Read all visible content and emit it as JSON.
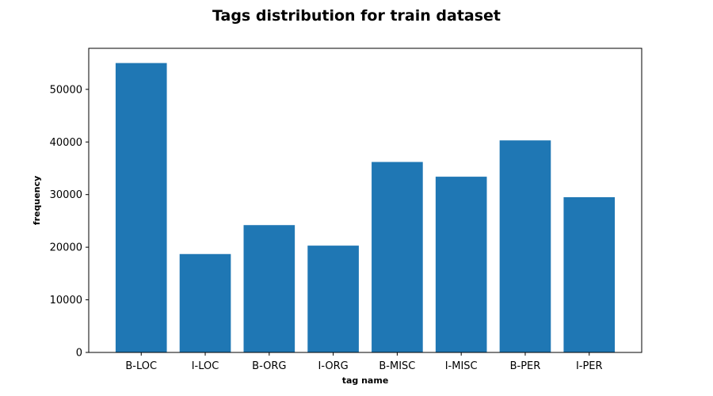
{
  "chart_data": {
    "type": "bar",
    "title": "Tags distribution for train dataset",
    "xlabel": "tag name",
    "ylabel": "frequency",
    "categories": [
      "B-LOC",
      "I-LOC",
      "B-ORG",
      "I-ORG",
      "B-MISC",
      "I-MISC",
      "B-PER",
      "I-PER"
    ],
    "values": [
      55000,
      18700,
      24200,
      20300,
      36200,
      33400,
      40300,
      29500
    ],
    "yticks": [
      0,
      10000,
      20000,
      30000,
      40000,
      50000
    ],
    "ylim": [
      0,
      57800
    ],
    "grid": false,
    "legend": "none",
    "colors": {
      "bar": "#1f77b4",
      "axes": "#000000",
      "background": "#ffffff"
    }
  }
}
